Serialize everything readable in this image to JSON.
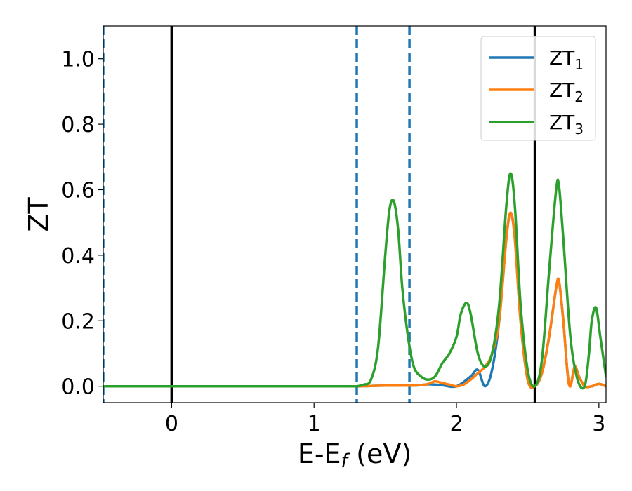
{
  "chart_data": {
    "type": "line",
    "title": "",
    "xlabel": "E-E",
    "xlabel_sub": "f",
    "xlabel_suffix": " (eV)",
    "ylabel": "ZT",
    "xlim": [
      -0.48,
      3.05
    ],
    "ylim": [
      -0.05,
      1.1
    ],
    "xticks": [
      0,
      1,
      2,
      3
    ],
    "xtick_labels": [
      "0",
      "1",
      "2",
      "3"
    ],
    "yticks": [
      0.0,
      0.2,
      0.4,
      0.6,
      0.8,
      1.0
    ],
    "ytick_labels": [
      "0.0",
      "0.2",
      "0.4",
      "0.6",
      "0.8",
      "1.0"
    ],
    "grid": false,
    "legend_placement": "top-right",
    "vlines": [
      {
        "x": -0.48,
        "style": "dashed",
        "color": "#1f77b4"
      },
      {
        "x": 0.0,
        "style": "solid",
        "color": "#000000"
      },
      {
        "x": 1.3,
        "style": "dashed",
        "color": "#1f77b4"
      },
      {
        "x": 1.67,
        "style": "dashed",
        "color": "#1f77b4"
      },
      {
        "x": 2.55,
        "style": "solid",
        "color": "#000000"
      }
    ],
    "series": [
      {
        "name": "ZT",
        "sub": "1",
        "color": "#1f77b4",
        "x": [
          -0.48,
          0.5,
          1.0,
          1.3,
          1.5,
          1.7,
          1.78,
          1.82,
          1.9,
          2.0,
          2.1,
          2.15,
          2.2,
          2.25,
          2.3,
          2.35,
          2.38,
          2.41,
          2.45,
          2.5,
          2.55,
          2.6,
          2.65,
          2.7,
          2.72,
          2.75,
          2.78,
          2.8,
          2.83,
          2.86,
          2.9,
          2.95,
          3.0,
          3.05
        ],
        "y": [
          0.0,
          0.0,
          0.0,
          0.0,
          0.002,
          0.002,
          0.005,
          0.006,
          0.003,
          0.0,
          0.03,
          0.05,
          0.0,
          0.05,
          0.2,
          0.45,
          0.53,
          0.45,
          0.2,
          0.02,
          0.0,
          0.04,
          0.15,
          0.3,
          0.32,
          0.2,
          0.04,
          0.0,
          0.06,
          0.03,
          0.0,
          0.0,
          0.007,
          0.0
        ]
      },
      {
        "name": "ZT",
        "sub": "2",
        "color": "#ff7f0e",
        "x": [
          -0.48,
          0.5,
          1.0,
          1.3,
          1.5,
          1.7,
          1.78,
          1.82,
          1.85,
          1.9,
          1.95,
          2.0,
          2.05,
          2.1,
          2.15,
          2.2,
          2.25,
          2.3,
          2.35,
          2.38,
          2.41,
          2.45,
          2.5,
          2.55,
          2.6,
          2.65,
          2.7,
          2.72,
          2.75,
          2.78,
          2.8,
          2.83,
          2.86,
          2.9,
          2.95,
          3.0,
          3.05
        ],
        "y": [
          0.0,
          0.0,
          0.0,
          0.0,
          0.002,
          0.002,
          0.005,
          0.01,
          0.015,
          0.01,
          0.005,
          0.0,
          0.005,
          0.02,
          0.04,
          0.06,
          0.1,
          0.2,
          0.45,
          0.53,
          0.45,
          0.2,
          0.02,
          0.0,
          0.04,
          0.15,
          0.3,
          0.32,
          0.2,
          0.04,
          0.0,
          0.06,
          0.03,
          0.0,
          0.0,
          0.007,
          0.0
        ]
      },
      {
        "name": "ZT",
        "sub": "3",
        "color": "#2ca02c",
        "x": [
          -0.48,
          0.5,
          1.0,
          1.25,
          1.3,
          1.35,
          1.4,
          1.45,
          1.5,
          1.53,
          1.56,
          1.59,
          1.62,
          1.66,
          1.7,
          1.75,
          1.8,
          1.85,
          1.9,
          1.95,
          2.0,
          2.03,
          2.07,
          2.1,
          2.15,
          2.2,
          2.25,
          2.3,
          2.35,
          2.38,
          2.41,
          2.45,
          2.5,
          2.55,
          2.6,
          2.65,
          2.7,
          2.72,
          2.75,
          2.8,
          2.85,
          2.9,
          2.93,
          2.95,
          2.98,
          3.01,
          3.05
        ],
        "y": [
          0.0,
          0.0,
          0.0,
          0.0,
          0.0,
          0.005,
          0.02,
          0.12,
          0.4,
          0.54,
          0.565,
          0.48,
          0.3,
          0.15,
          0.06,
          0.03,
          0.02,
          0.03,
          0.07,
          0.1,
          0.15,
          0.22,
          0.255,
          0.22,
          0.1,
          0.06,
          0.1,
          0.25,
          0.55,
          0.65,
          0.55,
          0.25,
          0.05,
          0.0,
          0.08,
          0.35,
          0.6,
          0.61,
          0.45,
          0.15,
          0.02,
          0.0,
          0.1,
          0.2,
          0.24,
          0.15,
          0.03
        ]
      }
    ]
  }
}
